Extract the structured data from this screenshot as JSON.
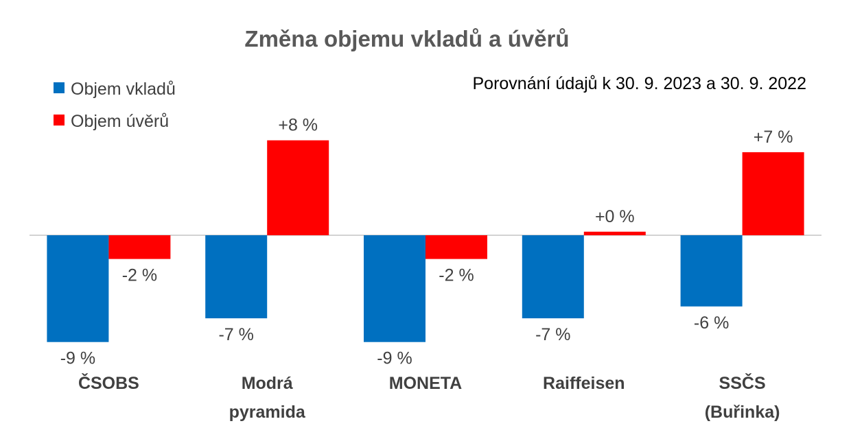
{
  "chart_data": {
    "type": "bar",
    "title": "Změna objemu vkladů a úvěrů",
    "subtitle": "Porovnání údajů k 30. 9. 2023 a 30. 9. 2022",
    "xlabel": "",
    "ylabel": "",
    "ylim": [
      -10.5,
      10
    ],
    "grid": false,
    "legend_position": "top-left",
    "categories": [
      [
        "ČSOBS"
      ],
      [
        "Modrá",
        "pyramida"
      ],
      [
        "MONETA"
      ],
      [
        "Raiffeisen"
      ],
      [
        "SSČS",
        "(Buřinka)"
      ]
    ],
    "series": [
      {
        "name": "Objem vkladů",
        "color": "#0070C0",
        "values": [
          -9,
          -7,
          -9,
          -7,
          -6
        ],
        "labels": [
          "-9 %",
          "-7 %",
          "-9 %",
          "-7 %",
          "-6 %"
        ]
      },
      {
        "name": "Objem úvěrů",
        "color": "#FF0000",
        "values": [
          -2,
          8,
          -2,
          0.3,
          7
        ],
        "labels": [
          "-2 %",
          "+8 %",
          "-2 %",
          "+0 %",
          "+7 %"
        ]
      }
    ],
    "axis_color": "#A6A6A6"
  }
}
